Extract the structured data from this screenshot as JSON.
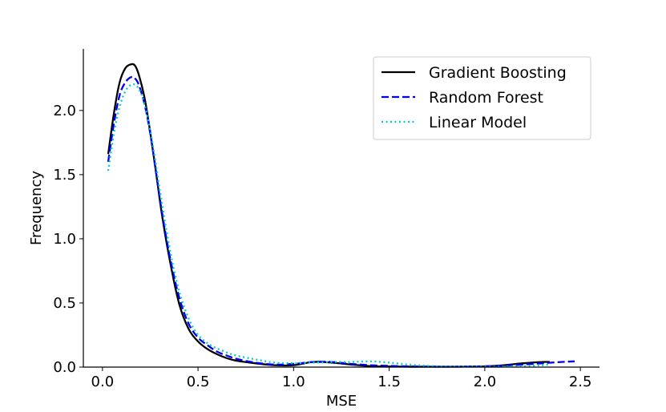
{
  "chart_data": {
    "type": "line",
    "title": "",
    "xlabel": "MSE",
    "ylabel": "Frequency",
    "xlim": [
      -0.1,
      2.6
    ],
    "ylim": [
      0,
      2.48
    ],
    "xticks": [
      0.0,
      0.5,
      1.0,
      1.5,
      2.0,
      2.5
    ],
    "xtick_labels": [
      "0.0",
      "0.5",
      "1.0",
      "1.5",
      "2.0",
      "2.5"
    ],
    "yticks": [
      0.0,
      0.5,
      1.0,
      1.5,
      2.0
    ],
    "ytick_labels": [
      "0.0",
      "0.5",
      "1.0",
      "1.5",
      "2.0"
    ],
    "grid": false,
    "legend_position": "top-right",
    "series": [
      {
        "name": "Gradient Boosting",
        "color": "#000000",
        "style": "solid",
        "x": [
          0.03,
          0.06,
          0.09,
          0.12,
          0.15,
          0.17,
          0.19,
          0.22,
          0.25,
          0.28,
          0.31,
          0.35,
          0.4,
          0.45,
          0.5,
          0.55,
          0.6,
          0.65,
          0.7,
          0.8,
          0.9,
          1.0,
          1.1,
          1.2,
          1.3,
          1.4,
          1.5,
          1.6,
          1.7,
          1.8,
          1.9,
          2.0,
          2.1,
          2.2,
          2.3,
          2.34
        ],
        "y": [
          1.66,
          1.98,
          2.22,
          2.33,
          2.36,
          2.35,
          2.28,
          2.1,
          1.83,
          1.52,
          1.2,
          0.85,
          0.5,
          0.3,
          0.2,
          0.14,
          0.1,
          0.07,
          0.05,
          0.03,
          0.015,
          0.015,
          0.04,
          0.035,
          0.02,
          0.008,
          0.005,
          0.003,
          0.003,
          0.003,
          0.004,
          0.006,
          0.015,
          0.03,
          0.04,
          0.04
        ]
      },
      {
        "name": "Random Forest",
        "color": "#0000ee",
        "style": "dashed",
        "x": [
          0.03,
          0.06,
          0.09,
          0.12,
          0.15,
          0.17,
          0.19,
          0.22,
          0.25,
          0.28,
          0.31,
          0.35,
          0.4,
          0.45,
          0.5,
          0.55,
          0.6,
          0.65,
          0.7,
          0.8,
          0.9,
          1.0,
          1.1,
          1.2,
          1.3,
          1.4,
          1.5,
          1.6,
          1.7,
          1.8,
          1.9,
          2.0,
          2.1,
          2.2,
          2.3,
          2.4,
          2.47
        ],
        "y": [
          1.6,
          1.9,
          2.12,
          2.22,
          2.26,
          2.25,
          2.2,
          2.05,
          1.82,
          1.52,
          1.22,
          0.88,
          0.55,
          0.34,
          0.23,
          0.17,
          0.12,
          0.09,
          0.065,
          0.035,
          0.02,
          0.025,
          0.04,
          0.04,
          0.025,
          0.015,
          0.01,
          0.006,
          0.004,
          0.003,
          0.004,
          0.007,
          0.012,
          0.02,
          0.03,
          0.04,
          0.045
        ]
      },
      {
        "name": "Linear Model",
        "color": "#00cccc",
        "style": "dotted",
        "x": [
          0.03,
          0.06,
          0.09,
          0.12,
          0.15,
          0.18,
          0.21,
          0.24,
          0.27,
          0.3,
          0.34,
          0.38,
          0.42,
          0.47,
          0.52,
          0.58,
          0.64,
          0.7,
          0.8,
          0.9,
          1.0,
          1.1,
          1.2,
          1.3,
          1.4,
          1.5,
          1.6,
          1.7,
          1.8,
          1.9,
          2.0,
          2.1,
          2.2,
          2.3,
          2.34
        ],
        "y": [
          1.53,
          1.82,
          2.03,
          2.15,
          2.2,
          2.19,
          2.1,
          1.92,
          1.67,
          1.38,
          1.02,
          0.72,
          0.5,
          0.32,
          0.22,
          0.16,
          0.12,
          0.09,
          0.06,
          0.035,
          0.03,
          0.035,
          0.04,
          0.04,
          0.045,
          0.035,
          0.02,
          0.01,
          0.005,
          0.003,
          0.003,
          0.004,
          0.008,
          0.015,
          0.02
        ]
      }
    ]
  }
}
